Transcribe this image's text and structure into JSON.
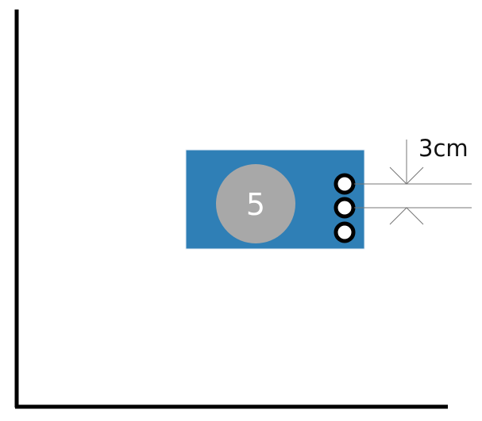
{
  "module": {
    "number": "5",
    "color": "#2f7fb6",
    "circle_color": "#a8a8a8",
    "pin_count": 3
  },
  "dimension": {
    "label": "3cm"
  }
}
